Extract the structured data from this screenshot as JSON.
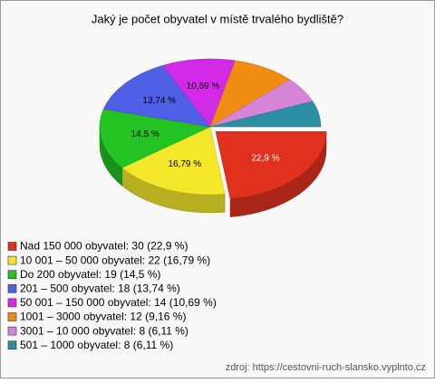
{
  "chart_data": {
    "type": "pie3d",
    "title": "Jaký je počet obyvatel v místě trvalého bydliště?",
    "categories": [
      "Nad 150 000 obyvatel: 30 (22,9 %)",
      "10 001 – 50 000 obyvatel: 22 (16,79 %)",
      "Do 200 obyvatel: 19 (14,5 %)",
      "201 – 500 obyvatel: 18 (13,74 %)",
      "50 001 – 150 000 obyvatel: 14 (10,69 %)",
      "1001 – 3000 obyvatel: 12 (9,16 %)",
      "3001 – 10 000 obyvatel: 8 (6,11 %)",
      "501 – 1000 obyvatel: 8 (6,11 %)"
    ],
    "values": [
      22.9,
      16.79,
      14.5,
      13.74,
      10.69,
      9.16,
      6.11,
      6.11
    ],
    "value_labels": [
      "22,9 %",
      "16,79 %",
      "14,5 %",
      "13,74 %",
      "10,69 %",
      null,
      null,
      null
    ],
    "colors": [
      "#e2301f",
      "#f4e82a",
      "#22c322",
      "#4f5fe6",
      "#d22ae6",
      "#f08c12",
      "#d684d8",
      "#2a8fa2"
    ],
    "source": "zdroj: https://cestovni-ruch-slansko.vyplnto.cz"
  }
}
